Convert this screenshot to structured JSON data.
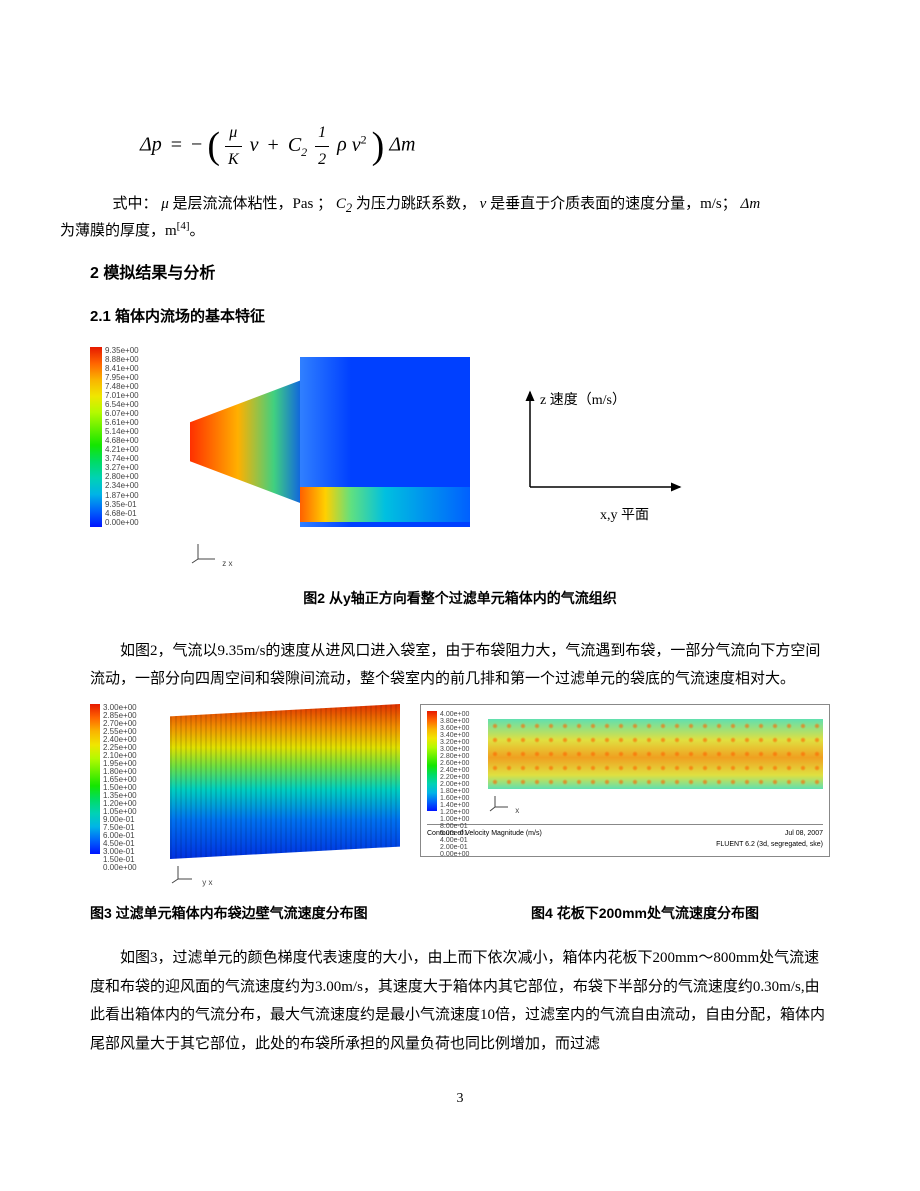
{
  "equation": {
    "lhs": "Δp",
    "eq": "=",
    "neg": "−",
    "frac1_num": "μ",
    "frac1_den": "K",
    "v1": "v",
    "plus": "+",
    "C2": "C",
    "C2_sub": "2",
    "frac2_num": "1",
    "frac2_den": "2",
    "rho": "ρ",
    "v2": "v",
    "sq": "2",
    "dm": "Δm"
  },
  "desc": {
    "prefix": "式中：",
    "mu_sym": "μ",
    "mu_txt": " 是层流流体粘性，Pas ；",
    "c2_sym": "C",
    "c2_sub": "2",
    "c2_txt": " 为压力跳跃系数， ",
    "v_sym": "v",
    "v_txt": " 是垂直于介质表面的速度分量，m/s；",
    "dm_sym": "Δm",
    "dm_txt": "为薄膜的厚度，m",
    "ref": "[4]",
    "period": "。"
  },
  "section2": "2   模拟结果与分析",
  "subsection21": "2.1   箱体内流场的基本特征",
  "colorbar1": {
    "values": [
      "9.35e+00",
      "8.88e+00",
      "8.41e+00",
      "7.95e+00",
      "7.48e+00",
      "7.01e+00",
      "6.54e+00",
      "6.07e+00",
      "5.61e+00",
      "5.14e+00",
      "4.68e+00",
      "4.21e+00",
      "3.74e+00",
      "3.27e+00",
      "2.80e+00",
      "2.34e+00",
      "1.87e+00",
      "9.35e-01",
      "4.68e-01",
      "0.00e+00"
    ],
    "colors_top": "#e61900",
    "colors_bot": "#0014ff"
  },
  "axis_diag": {
    "z_label": "z 速度（m/s）",
    "xy_label": "x,y 平面"
  },
  "mini_axis1": {
    "z": "z",
    "y": "y",
    "x": "x"
  },
  "fig2_caption": "图2  从y轴正方向看整个过滤单元箱体内的气流组织",
  "para1": "如图2，气流以9.35m/s的速度从进风口进入袋室，由于布袋阻力大，气流遇到布袋，一部分气流向下方空间流动，一部分向四周空间和袋隙间流动，整个袋室内的前几排和第一个过滤单元的袋底的气流速度相对大。",
  "colorbar3": {
    "values": [
      "3.00e+00",
      "2.85e+00",
      "2.70e+00",
      "2.55e+00",
      "2.40e+00",
      "2.25e+00",
      "2.10e+00",
      "1.95e+00",
      "1.80e+00",
      "1.65e+00",
      "1.50e+00",
      "1.35e+00",
      "1.20e+00",
      "1.05e+00",
      "9.00e-01",
      "7.50e-01",
      "6.00e-01",
      "4.50e-01",
      "3.00e-01",
      "1.50e-01",
      "0.00e+00"
    ]
  },
  "colorbar4": {
    "values": [
      "4.00e+00",
      "3.80e+00",
      "3.60e+00",
      "3.40e+00",
      "3.20e+00",
      "3.00e+00",
      "2.80e+00",
      "2.60e+00",
      "2.40e+00",
      "2.20e+00",
      "2.00e+00",
      "1.80e+00",
      "1.60e+00",
      "1.40e+00",
      "1.20e+00",
      "1.00e+00",
      "8.00e-01",
      "6.00e-01",
      "4.00e-01",
      "2.00e-01",
      "0.00e+00"
    ]
  },
  "fig4_footer": {
    "left": "Contours of Velocity Magnitude (m/s)",
    "right_top": "Jul 08, 2007",
    "right_bot": "FLUENT 6.2 (3d, segregated, ske)"
  },
  "mini_axis3": {
    "z": "z",
    "y": "y",
    "x": "x"
  },
  "mini_axis4": {
    "z": "z",
    "y": "y",
    "x": "x"
  },
  "fig3_caption": "图3   过滤单元箱体内布袋边壁气流速度分布图",
  "fig4_caption": "图4   花板下200mm处气流速度分布图",
  "para2": "如图3，过滤单元的颜色梯度代表速度的大小，由上而下依次减小，箱体内花板下200mm～800mm处气流速度和布袋的迎风面的气流速度约为3.00m/s，其速度大于箱体内其它部位，布袋下半部分的气流速度约0.30m/s,由此看出箱体内的气流分布，最大气流速度约是最小气流速度10倍，过滤室内的气流自由流动，自由分配，箱体内尾部风量大于其它部位，此处的布袋所承担的风量负荷也同比例增加，而过滤",
  "page_number": "3"
}
